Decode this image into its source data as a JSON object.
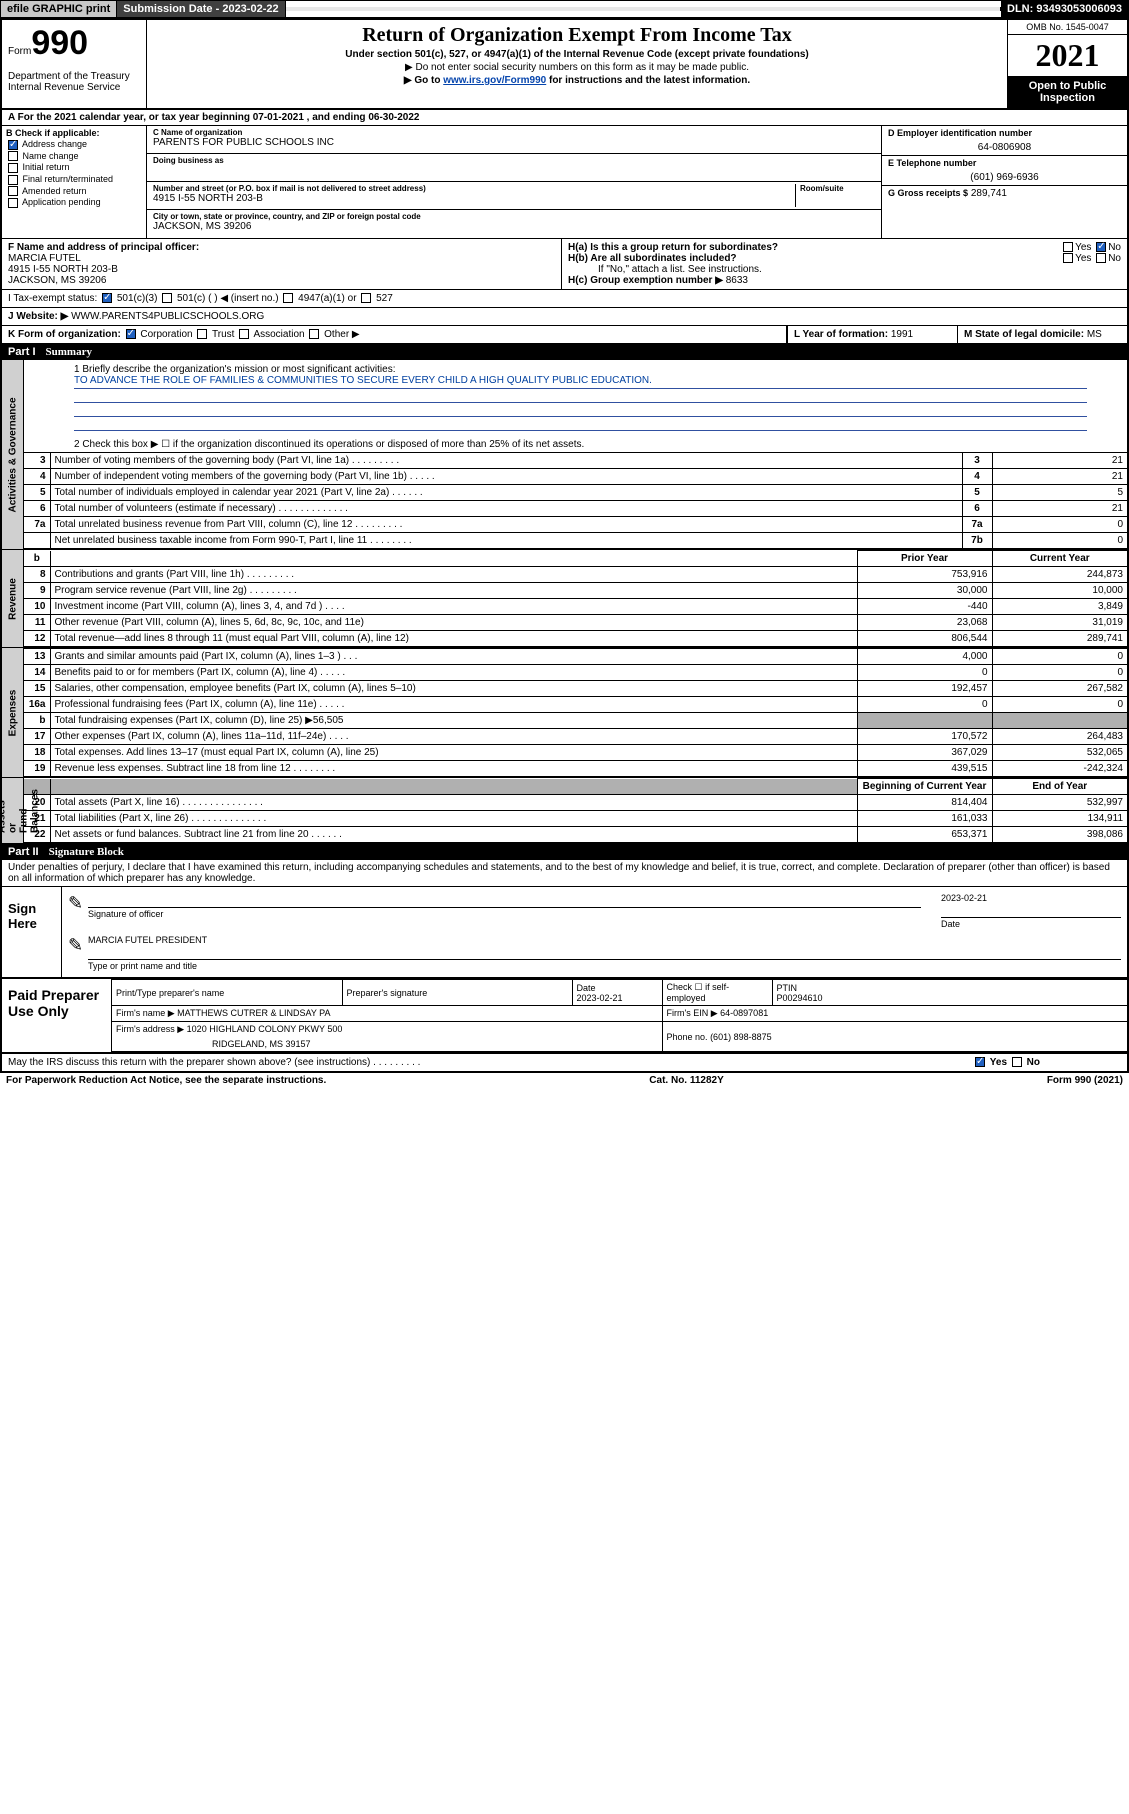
{
  "toolbar": {
    "efile": "efile GRAPHIC print",
    "sub_label": "Submission Date - ",
    "sub_date": "2023-02-22",
    "dln_label": "DLN: ",
    "dln": "93493053006093"
  },
  "header": {
    "form_word": "Form",
    "form_num": "990",
    "dept": "Department of the Treasury\nInternal Revenue Service",
    "title": "Return of Organization Exempt From Income Tax",
    "sub": "Under section 501(c), 527, or 4947(a)(1) of the Internal Revenue Code (except private foundations)",
    "note1": "▶ Do not enter social security numbers on this form as it may be made public.",
    "note2_pre": "▶ Go to ",
    "note2_link": "www.irs.gov/Form990",
    "note2_post": " for instructions and the latest information.",
    "omb": "OMB No. 1545-0047",
    "year": "2021",
    "open": "Open to Public Inspection"
  },
  "rowA": "A For the 2021 calendar year, or tax year beginning 07-01-2021   , and ending 06-30-2022",
  "boxB": {
    "label": "B Check if applicable:",
    "items": [
      "Address change",
      "Name change",
      "Initial return",
      "Final return/terminated",
      "Amended return",
      "Application pending"
    ],
    "checked_idx": 0
  },
  "boxC": {
    "name_lbl": "C Name of organization",
    "name": "PARENTS FOR PUBLIC SCHOOLS INC",
    "dba_lbl": "Doing business as",
    "dba": "",
    "addr_lbl": "Number and street (or P.O. box if mail is not delivered to street address)",
    "room_lbl": "Room/suite",
    "addr": "4915 I-55 NORTH 203-B",
    "city_lbl": "City or town, state or province, country, and ZIP or foreign postal code",
    "city": "JACKSON, MS  39206"
  },
  "boxD": {
    "lbl": "D Employer identification number",
    "val": "64-0806908"
  },
  "boxE": {
    "lbl": "E Telephone number",
    "val": "(601) 969-6936"
  },
  "boxG": {
    "lbl": "G Gross receipts $",
    "val": "289,741"
  },
  "boxF": {
    "lbl": "F Name and address of principal officer:",
    "name": "MARCIA FUTEL",
    "addr1": "4915 I-55 NORTH 203-B",
    "addr2": "JACKSON, MS  39206"
  },
  "boxH": {
    "a": "H(a)  Is this a group return for subordinates?",
    "b": "H(b)  Are all subordinates included?",
    "b_note": "If \"No,\" attach a list. See instructions.",
    "c_lbl": "H(c)  Group exemption number ▶",
    "c_val": "8633",
    "yes": "Yes",
    "no": "No"
  },
  "boxI": {
    "lbl": "I   Tax-exempt status:",
    "opts": [
      "501(c)(3)",
      "501(c) (  ) ◀ (insert no.)",
      "4947(a)(1) or",
      "527"
    ]
  },
  "boxJ": {
    "lbl": "J   Website: ▶",
    "val": "WWW.PARENTS4PUBLICSCHOOLS.ORG"
  },
  "boxK": {
    "lbl": "K Form of organization:",
    "opts": [
      "Corporation",
      "Trust",
      "Association",
      "Other ▶"
    ]
  },
  "boxL": {
    "lbl": "L Year of formation:",
    "val": "1991"
  },
  "boxM": {
    "lbl": "M State of legal domicile:",
    "val": "MS"
  },
  "part1": {
    "num": "Part I",
    "title": "Summary"
  },
  "mission": {
    "q": "1   Briefly describe the organization's mission or most significant activities:",
    "text": "TO ADVANCE THE ROLE OF FAMILIES & COMMUNITIES TO SECURE EVERY CHILD A HIGH QUALITY PUBLIC EDUCATION."
  },
  "line2": "2    Check this box ▶ ☐  if the organization discontinued its operations or disposed of more than 25% of its net assets.",
  "gov_rows": [
    {
      "n": "3",
      "d": "Number of voting members of the governing body (Part VI, line 1a)   .    .    .    .    .    .    .    .    .",
      "bn": "3",
      "v": "21"
    },
    {
      "n": "4",
      "d": "Number of independent voting members of the governing body (Part VI, line 1b)  .    .    .    .    .",
      "bn": "4",
      "v": "21"
    },
    {
      "n": "5",
      "d": "Total number of individuals employed in calendar year 2021 (Part V, line 2a)   .    .    .    .    .    .",
      "bn": "5",
      "v": "5"
    },
    {
      "n": "6",
      "d": "Total number of volunteers (estimate if necessary)   .    .    .    .    .    .    .    .    .    .    .    .    .",
      "bn": "6",
      "v": "21"
    },
    {
      "n": "7a",
      "d": "Total unrelated business revenue from Part VIII, column (C), line 12  .    .    .    .    .    .    .    .    .",
      "bn": "7a",
      "v": "0"
    },
    {
      "n": "",
      "d": "Net unrelated business taxable income from Form 990-T, Part I, line 11   .    .    .    .    .    .    .    .",
      "bn": "7b",
      "v": "0"
    }
  ],
  "rev_hdr": {
    "b": "b",
    "py": "Prior Year",
    "cy": "Current Year"
  },
  "rev_rows": [
    {
      "n": "8",
      "d": "Contributions and grants (Part VIII, line 1h)    .    .    .    .    .    .    .    .    .",
      "py": "753,916",
      "cy": "244,873"
    },
    {
      "n": "9",
      "d": "Program service revenue (Part VIII, line 2g)   .    .    .    .    .    .    .    .    .",
      "py": "30,000",
      "cy": "10,000"
    },
    {
      "n": "10",
      "d": "Investment income (Part VIII, column (A), lines 3, 4, and 7d )   .    .    .    .",
      "py": "-440",
      "cy": "3,849"
    },
    {
      "n": "11",
      "d": "Other revenue (Part VIII, column (A), lines 5, 6d, 8c, 9c, 10c, and 11e)",
      "py": "23,068",
      "cy": "31,019"
    },
    {
      "n": "12",
      "d": "Total revenue—add lines 8 through 11 (must equal Part VIII, column (A), line 12)",
      "py": "806,544",
      "cy": "289,741"
    }
  ],
  "exp_rows": [
    {
      "n": "13",
      "d": "Grants and similar amounts paid (Part IX, column (A), lines 1–3 )   .    .    .",
      "py": "4,000",
      "cy": "0"
    },
    {
      "n": "14",
      "d": "Benefits paid to or for members (Part IX, column (A), line 4)  .    .    .    .    .",
      "py": "0",
      "cy": "0"
    },
    {
      "n": "15",
      "d": "Salaries, other compensation, employee benefits (Part IX, column (A), lines 5–10)",
      "py": "192,457",
      "cy": "267,582"
    },
    {
      "n": "16a",
      "d": "Professional fundraising fees (Part IX, column (A), line 11e)  .    .    .    .    .",
      "py": "0",
      "cy": "0"
    },
    {
      "n": "b",
      "d": "Total fundraising expenses (Part IX, column (D), line 25) ▶56,505",
      "py": "GRAY",
      "cy": "GRAY"
    },
    {
      "n": "17",
      "d": "Other expenses (Part IX, column (A), lines 11a–11d, 11f–24e)   .    .    .    .",
      "py": "170,572",
      "cy": "264,483"
    },
    {
      "n": "18",
      "d": "Total expenses. Add lines 13–17 (must equal Part IX, column (A), line 25)",
      "py": "367,029",
      "cy": "532,065"
    },
    {
      "n": "19",
      "d": "Revenue less expenses. Subtract line 18 from line 12  .    .    .    .    .    .    .    .",
      "py": "439,515",
      "cy": "-242,324"
    }
  ],
  "na_hdr": {
    "py": "Beginning of Current Year",
    "cy": "End of Year"
  },
  "na_rows": [
    {
      "n": "20",
      "d": "Total assets (Part X, line 16)  .    .    .    .    .    .    .    .    .    .    .    .    .    .    .",
      "py": "814,404",
      "cy": "532,997"
    },
    {
      "n": "21",
      "d": "Total liabilities (Part X, line 26)   .    .    .    .    .    .    .    .    .    .    .    .    .    .",
      "py": "161,033",
      "cy": "134,911"
    },
    {
      "n": "22",
      "d": "Net assets or fund balances. Subtract line 21 from line 20   .    .    .    .    .    .",
      "py": "653,371",
      "cy": "398,086"
    }
  ],
  "side_labels": {
    "gov": "Activities & Governance",
    "rev": "Revenue",
    "exp": "Expenses",
    "na": "Net Assets or\nFund Balances"
  },
  "part2": {
    "num": "Part II",
    "title": "Signature Block"
  },
  "p2text": "Under penalties of perjury, I declare that I have examined this return, including accompanying schedules and statements, and to the best of my knowledge and belief, it is true, correct, and complete. Declaration of preparer (other than officer) is based on all information of which preparer has any knowledge.",
  "sign": {
    "here": "Sign Here",
    "sig_lbl": "Signature of officer",
    "date_lbl": "Date",
    "date": "2023-02-21",
    "name": "MARCIA FUTEL PRESIDENT",
    "name_lbl": "Type or print name and title"
  },
  "prep": {
    "here": "Paid Preparer Use Only",
    "r1": {
      "c1": "Print/Type preparer's name",
      "c2": "Preparer's signature",
      "c3_lbl": "Date",
      "c3": "2023-02-21",
      "c4": "Check ☐ if self-employed",
      "c5_lbl": "PTIN",
      "c5": "P00294610"
    },
    "r2": {
      "c1_lbl": "Firm's name      ▶",
      "c1": "MATTHEWS CUTRER & LINDSAY PA",
      "c2_lbl": "Firm's EIN ▶",
      "c2": "64-0897081"
    },
    "r3": {
      "c1_lbl": "Firm's address ▶",
      "c1": "1020 HIGHLAND COLONY PKWY 500",
      "c2_lbl": "Phone no.",
      "c2": "(601) 898-8875"
    },
    "r4": "RIDGELAND, MS  39157"
  },
  "discuss": {
    "q": "May the IRS discuss this return with the preparer shown above? (see instructions)   .    .    .    .    .    .    .    .    .",
    "yes": "Yes",
    "no": "No"
  },
  "footer": {
    "l": "For Paperwork Reduction Act Notice, see the separate instructions.",
    "m": "Cat. No. 11282Y",
    "r": "Form 990 (2021)"
  }
}
